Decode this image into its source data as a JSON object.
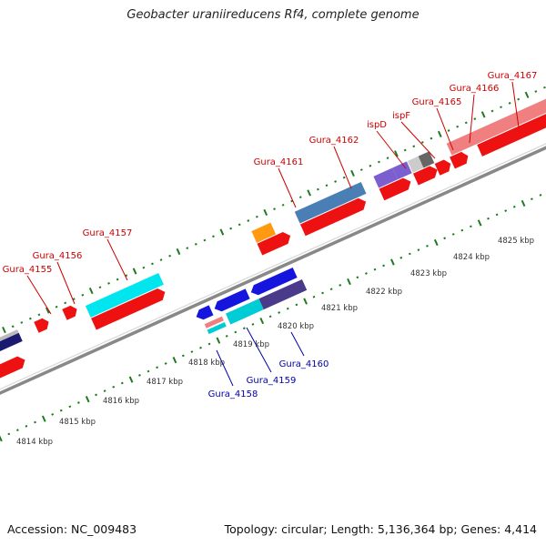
{
  "title": "Geobacter uraniireducens Rf4, complete genome",
  "footer": {
    "accession": "Accession: NC_009483",
    "summary": "Topology: circular; Length: 5,136,364 bp; Genes: 4,414"
  },
  "colors": {
    "backbone": "#888888",
    "tick": "#1e7a1e",
    "forward_label": "#cc0000",
    "reverse_label": "#0000aa",
    "red_cds": "#ee1111",
    "cyan_cds": "#00e5ee",
    "blue_cds": "#1515dd",
    "steel_blue": "#4a7fb5",
    "orange": "#ff9910",
    "purple": "#7b5fcf",
    "indigo": "#4a3a8a",
    "navy": "#1a1a70",
    "light_gray": "#cccccc",
    "dark_gray": "#666666",
    "pink": "#f08080"
  },
  "scale_labels": [
    "4814 kbp",
    "4815 kbp",
    "4816 kbp",
    "4817 kbp",
    "4818 kbp",
    "4819 kbp",
    "4820 kbp",
    "4821 kbp",
    "4822 kbp",
    "4823 kbp",
    "4824 kbp",
    "4825 kbp"
  ],
  "forward_genes": [
    "Gura_4155",
    "Gura_4156",
    "Gura_4157",
    "Gura_4161",
    "Gura_4162",
    "ispD",
    "ispF",
    "Gura_4165",
    "Gura_4166",
    "Gura_4167"
  ],
  "reverse_genes": [
    "Gura_4158",
    "Gura_4159",
    "Gura_4160"
  ]
}
